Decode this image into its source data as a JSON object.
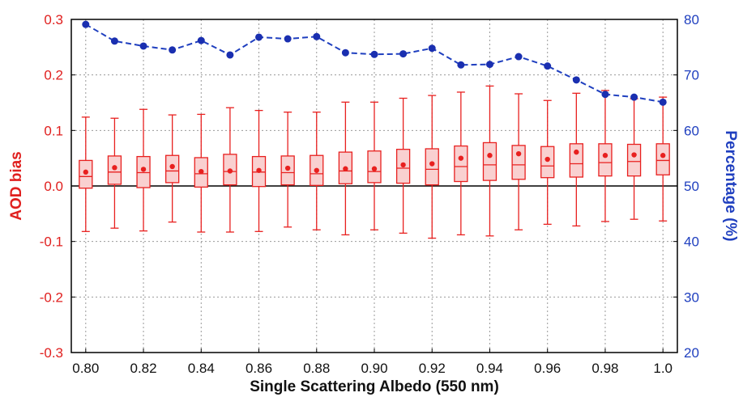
{
  "chart_data": {
    "type": "box",
    "title": "",
    "xlabel": "Single Scattering Albedo (550 nm)",
    "ylabel": "AOD bias",
    "y2label": "Percentage (%)",
    "xlim": [
      0.795,
      1.005
    ],
    "ylim": [
      -0.3,
      0.3
    ],
    "y2lim": [
      20,
      80
    ],
    "x_ticks": [
      0.8,
      0.82,
      0.84,
      0.86,
      0.88,
      0.9,
      0.92,
      0.94,
      0.96,
      0.98,
      1.0
    ],
    "x_tick_labels": [
      "0.80",
      "0.82",
      "0.84",
      "0.86",
      "0.88",
      "0.90",
      "0.92",
      "0.94",
      "0.96",
      "0.98",
      "1.0"
    ],
    "y_ticks": [
      -0.3,
      -0.2,
      -0.1,
      0.0,
      0.1,
      0.2,
      0.3
    ],
    "y_tick_labels": [
      "-0.3",
      "-0.2",
      "-0.1",
      "0.0",
      "0.1",
      "0.2",
      "0.3"
    ],
    "y2_ticks": [
      20,
      30,
      40,
      50,
      60,
      70,
      80
    ],
    "y2_tick_labels": [
      "20",
      "30",
      "40",
      "50",
      "60",
      "70",
      "80"
    ],
    "grid": true,
    "zero_line": 0.0,
    "colors": {
      "box": "#e8201f",
      "box_fill": "#f9d0d0",
      "percentage_line": "#1f3fbf",
      "percentage_marker": "#1a2fb0",
      "zero_line": "#000000",
      "grid": "#999999"
    },
    "box_series": {
      "x": [
        0.8,
        0.81,
        0.82,
        0.83,
        0.84,
        0.85,
        0.86,
        0.87,
        0.88,
        0.89,
        0.9,
        0.91,
        0.92,
        0.93,
        0.94,
        0.95,
        0.96,
        0.97,
        0.98,
        0.99,
        1.0
      ],
      "whisker_low": [
        -0.082,
        -0.076,
        -0.081,
        -0.065,
        -0.083,
        -0.083,
        -0.082,
        -0.074,
        -0.079,
        -0.088,
        -0.079,
        -0.085,
        -0.094,
        -0.088,
        -0.09,
        -0.079,
        -0.069,
        -0.072,
        -0.064,
        -0.06,
        -0.063
      ],
      "q1": [
        -0.004,
        0.003,
        -0.003,
        0.006,
        -0.002,
        0.002,
        -0.001,
        0.002,
        0.001,
        0.004,
        0.006,
        0.005,
        0.002,
        0.008,
        0.01,
        0.012,
        0.015,
        0.016,
        0.018,
        0.018,
        0.02
      ],
      "median": [
        0.017,
        0.025,
        0.024,
        0.027,
        0.022,
        0.026,
        0.025,
        0.024,
        0.022,
        0.027,
        0.026,
        0.032,
        0.03,
        0.035,
        0.038,
        0.038,
        0.036,
        0.04,
        0.042,
        0.044,
        0.046
      ],
      "q3": [
        0.046,
        0.054,
        0.053,
        0.055,
        0.051,
        0.057,
        0.053,
        0.054,
        0.055,
        0.061,
        0.063,
        0.066,
        0.067,
        0.072,
        0.078,
        0.073,
        0.071,
        0.076,
        0.076,
        0.075,
        0.076
      ],
      "whisker_high": [
        0.124,
        0.122,
        0.138,
        0.128,
        0.129,
        0.141,
        0.136,
        0.133,
        0.133,
        0.151,
        0.151,
        0.158,
        0.163,
        0.169,
        0.18,
        0.166,
        0.154,
        0.167,
        0.172,
        0.157,
        0.16
      ],
      "mean": [
        0.025,
        0.033,
        0.03,
        0.035,
        0.026,
        0.027,
        0.028,
        0.032,
        0.028,
        0.031,
        0.031,
        0.038,
        0.04,
        0.05,
        0.055,
        0.058,
        0.048,
        0.061,
        0.055,
        0.056,
        0.055
      ]
    },
    "percentage_series": {
      "x": [
        0.8,
        0.81,
        0.82,
        0.83,
        0.84,
        0.85,
        0.86,
        0.87,
        0.88,
        0.89,
        0.9,
        0.91,
        0.92,
        0.93,
        0.94,
        0.95,
        0.96,
        0.97,
        0.98,
        0.99,
        1.0
      ],
      "values": [
        79.1,
        76.1,
        75.2,
        74.5,
        76.2,
        73.6,
        76.8,
        76.5,
        76.9,
        74.0,
        73.7,
        73.8,
        74.8,
        71.8,
        71.9,
        73.3,
        71.6,
        69.1,
        66.5,
        66.0,
        65.1
      ]
    }
  }
}
